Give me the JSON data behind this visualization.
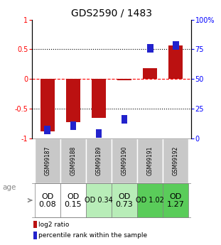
{
  "title": "GDS2590 / 1483",
  "samples": [
    "GSM99187",
    "GSM99188",
    "GSM99189",
    "GSM99190",
    "GSM99191",
    "GSM99192"
  ],
  "log2_ratio": [
    -0.88,
    -0.72,
    -0.65,
    -0.02,
    0.18,
    0.57
  ],
  "percentile_rank": [
    7,
    11,
    4,
    16,
    76,
    78
  ],
  "od_values": [
    "OD\n0.08",
    "OD\n0.15",
    "OD 0.34",
    "OD\n0.73",
    "OD 1.02",
    "OD\n1.27"
  ],
  "od_bg_colors": [
    "#ffffff",
    "#ffffff",
    "#b8edb8",
    "#b8edb8",
    "#5acc5a",
    "#5acc5a"
  ],
  "od_fontsize": [
    8,
    8,
    7,
    8,
    7,
    8
  ],
  "bar_color_red": "#bb1111",
  "bar_color_blue": "#2222cc",
  "ylim_left": [
    -1,
    1
  ],
  "ylim_right": [
    0,
    100
  ],
  "yticks_left": [
    -1,
    -0.5,
    0,
    0.5,
    1
  ],
  "yticks_right": [
    0,
    25,
    50,
    75,
    100
  ],
  "ytick_labels_left": [
    "-1",
    "-0.5",
    "0",
    "0.5",
    "1"
  ],
  "ytick_labels_right": [
    "0",
    "25",
    "50",
    "75",
    "100%"
  ],
  "hlines": [
    0.5,
    0,
    -0.5
  ],
  "hline_styles": [
    "dotted",
    "dashed",
    "dotted"
  ],
  "hline_colors": [
    "black",
    "red",
    "black"
  ],
  "background_color": "#ffffff",
  "sample_bg_color": "#c8c8c8",
  "bar_width": 0.55,
  "legend_labels": [
    "log2 ratio",
    "percentile rank within the sample"
  ],
  "age_label": "age"
}
